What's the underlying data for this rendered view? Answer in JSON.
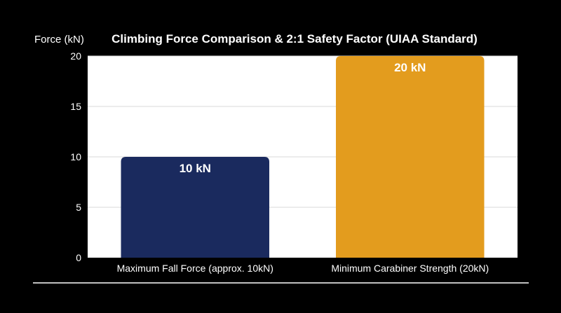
{
  "chart_data": {
    "type": "bar",
    "title": "Climbing Force Comparison & 2:1 Safety Factor (UIAA Standard)",
    "ylabel": "Force (kN)",
    "xlabel": "",
    "categories": [
      "Maximum Fall Force (approx. 10kN)",
      "Minimum Carabiner Strength (20kN)"
    ],
    "values": [
      10,
      20
    ],
    "data_labels": [
      "10 kN",
      "20 kN"
    ],
    "colors": [
      "#1a2a5e",
      "#e39c1e"
    ],
    "ylim": [
      0,
      20
    ],
    "yticks": [
      0,
      5,
      10,
      15,
      20
    ],
    "grid": true,
    "legend": "none",
    "plot_background": "#ffffff",
    "page_background": "#000000"
  }
}
